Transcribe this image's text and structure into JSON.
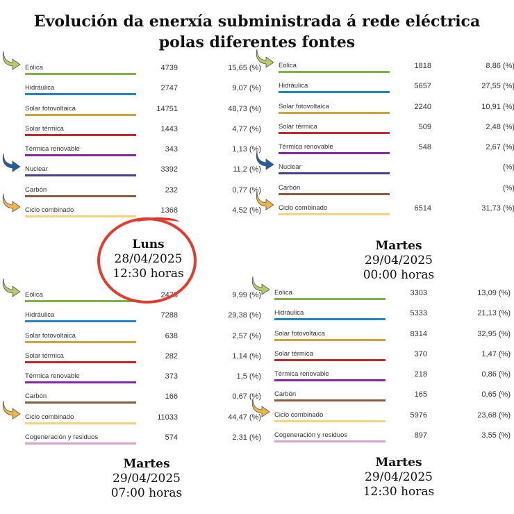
{
  "title_line1": "Evolución da enerxía subministrada á rede eléctrica",
  "title_line2": "polas diferentes fontes",
  "colors": {
    "Eólica": "#7cb342",
    "Hidráulica": "#1e88c7",
    "Solar fotovoltaica": "#d4a03a",
    "Solar térmica": "#c62828",
    "Térmica renovable": "#8e24aa",
    "Nuclear": "#4a3f8f",
    "Carbón": "#8d5a3b",
    "Ciclo combinado": "#f6d27a",
    "Cogeneración y residuos": "#d9a4c8",
    "arrow_green": "#b5cc6a",
    "arrow_blue": "#1f5fa8",
    "arrow_orange": "#f2b544",
    "highlight_circle": "#e63a2f"
  },
  "chart_data": [
    {
      "type": "table",
      "caption": {
        "day": "Luns",
        "date": "28/04/2025",
        "time": "12:30 horas"
      },
      "highlighted": true,
      "rows": [
        {
          "label": "Eólica",
          "value": "4739",
          "pct": "15,65 (%)"
        },
        {
          "label": "Hidráulica",
          "value": "2747",
          "pct": "9,07 (%)"
        },
        {
          "label": "Solar fotovoltaica",
          "value": "14751",
          "pct": "48,73 (%)"
        },
        {
          "label": "Solar térmica",
          "value": "1443",
          "pct": "4,77 (%)"
        },
        {
          "label": "Térmica renovable",
          "value": "343",
          "pct": "1,13 (%)"
        },
        {
          "label": "Nuclear",
          "value": "3392",
          "pct": "11,2 (%)"
        },
        {
          "label": "Carbón",
          "value": "232",
          "pct": "0,77 (%)"
        },
        {
          "label": "Ciclo combinado",
          "value": "1368",
          "pct": "4,52 (%)"
        }
      ],
      "arrows": [
        {
          "row": 0,
          "color": "green"
        },
        {
          "row": 5,
          "color": "blue"
        },
        {
          "row": 7,
          "color": "orange"
        }
      ]
    },
    {
      "type": "table",
      "caption": {
        "day": "Martes",
        "date": "29/04/2025",
        "time": "00:00 horas"
      },
      "highlighted": false,
      "rows": [
        {
          "label": "Eólica",
          "value": "1818",
          "pct": "8,86 (%)"
        },
        {
          "label": "Hidráulica",
          "value": "5657",
          "pct": "27,55 (%)"
        },
        {
          "label": "Solar fotovoltaica",
          "value": "2240",
          "pct": "10,91 (%)"
        },
        {
          "label": "Solar térmica",
          "value": "509",
          "pct": "2,48 (%)"
        },
        {
          "label": "Térmica renovable",
          "value": "548",
          "pct": "2,67 (%)"
        },
        {
          "label": "Nuclear",
          "value": "",
          "pct": "(%)"
        },
        {
          "label": "Carbón",
          "value": "",
          "pct": "(%)"
        },
        {
          "label": "Ciclo combinado",
          "value": "6514",
          "pct": "31,73 (%)"
        }
      ],
      "arrows": [
        {
          "row": 0,
          "color": "green"
        },
        {
          "row": 5,
          "color": "blue"
        },
        {
          "row": 7,
          "color": "orange"
        }
      ]
    },
    {
      "type": "table",
      "caption": {
        "day": "Martes",
        "date": "29/04/2025",
        "time": "07:00 horas"
      },
      "highlighted": false,
      "rows": [
        {
          "label": "Eólica",
          "value": "2478",
          "pct": "9,99 (%)"
        },
        {
          "label": "Hidráulica",
          "value": "7288",
          "pct": "29,38 (%)"
        },
        {
          "label": "Solar fotovoltaica",
          "value": "638",
          "pct": "2,57 (%)"
        },
        {
          "label": "Solar térmica",
          "value": "282",
          "pct": "1,14 (%)"
        },
        {
          "label": "Térmica renovable",
          "value": "373",
          "pct": "1,5 (%)"
        },
        {
          "label": "Carbón",
          "value": "166",
          "pct": "0,67 (%)"
        },
        {
          "label": "Ciclo combinado",
          "value": "11033",
          "pct": "44,47 (%)"
        },
        {
          "label": "Cogeneración y residuos",
          "value": "574",
          "pct": "2,31 (%)"
        }
      ],
      "arrows": [
        {
          "row": 0,
          "color": "green"
        },
        {
          "row": 6,
          "color": "orange"
        }
      ]
    },
    {
      "type": "table",
      "caption": {
        "day": "Martes",
        "date": "29/04/2025",
        "time": "12:30 horas"
      },
      "highlighted": false,
      "rows": [
        {
          "label": "Eólica",
          "value": "3303",
          "pct": "13,09 (%)"
        },
        {
          "label": "Hidráulica",
          "value": "5333",
          "pct": "21,13 (%)"
        },
        {
          "label": "Solar fotovoltaica",
          "value": "8314",
          "pct": "32,95 (%)"
        },
        {
          "label": "Solar térmica",
          "value": "370",
          "pct": "1,47 (%)"
        },
        {
          "label": "Térmica renovable",
          "value": "218",
          "pct": "0,86 (%)"
        },
        {
          "label": "Carbón",
          "value": "165",
          "pct": "0,65 (%)"
        },
        {
          "label": "Ciclo combinado",
          "value": "5976",
          "pct": "23,68 (%)"
        },
        {
          "label": "Cogeneración y residuos",
          "value": "897",
          "pct": "3,55 (%)"
        }
      ],
      "arrows": [
        {
          "row": 0,
          "color": "green"
        },
        {
          "row": 6,
          "color": "orange"
        }
      ]
    }
  ]
}
